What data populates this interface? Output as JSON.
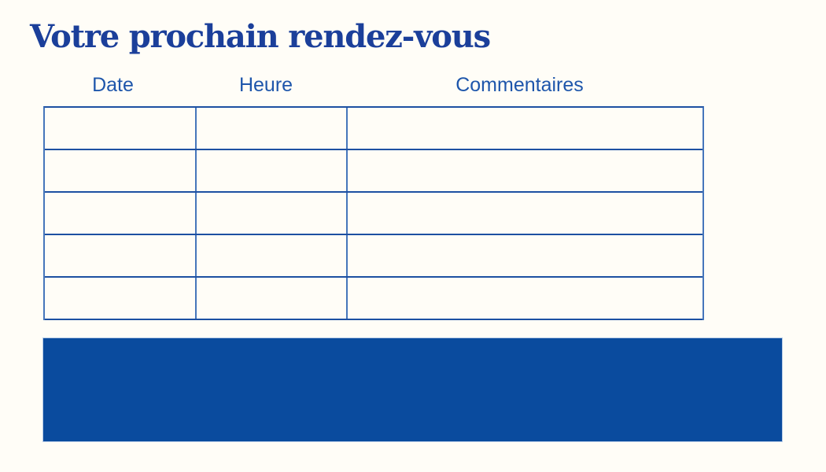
{
  "page": {
    "title": "Votre prochain rendez-vous",
    "background_color": "#fffdf7"
  },
  "colors": {
    "title_text": "#1b3f9a",
    "header_text": "#1e56ab",
    "table_border_horizontal": "#1d50a2",
    "table_border_vertical": "#4676bb",
    "banner_fill": "#0a4b9e"
  },
  "table": {
    "columns": [
      {
        "label": "Date"
      },
      {
        "label": "Heure"
      },
      {
        "label": "Commentaires"
      }
    ],
    "row_count": 5,
    "rows": [
      [
        "",
        "",
        ""
      ],
      [
        "",
        "",
        ""
      ],
      [
        "",
        "",
        ""
      ],
      [
        "",
        "",
        ""
      ],
      [
        "",
        "",
        ""
      ]
    ]
  },
  "banner": {
    "text": ""
  }
}
